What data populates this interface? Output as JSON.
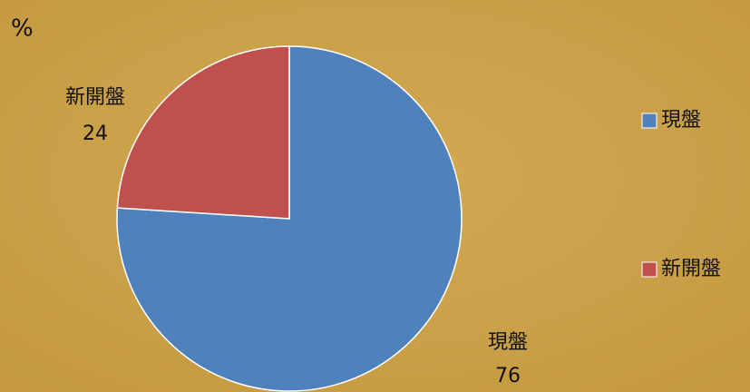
{
  "chart_data": {
    "type": "pie",
    "title": "%",
    "categories": [
      "現盤",
      "新開盤"
    ],
    "values": [
      76,
      24
    ],
    "colors": [
      "#4f81bd",
      "#c0504d"
    ],
    "legend": "right"
  }
}
